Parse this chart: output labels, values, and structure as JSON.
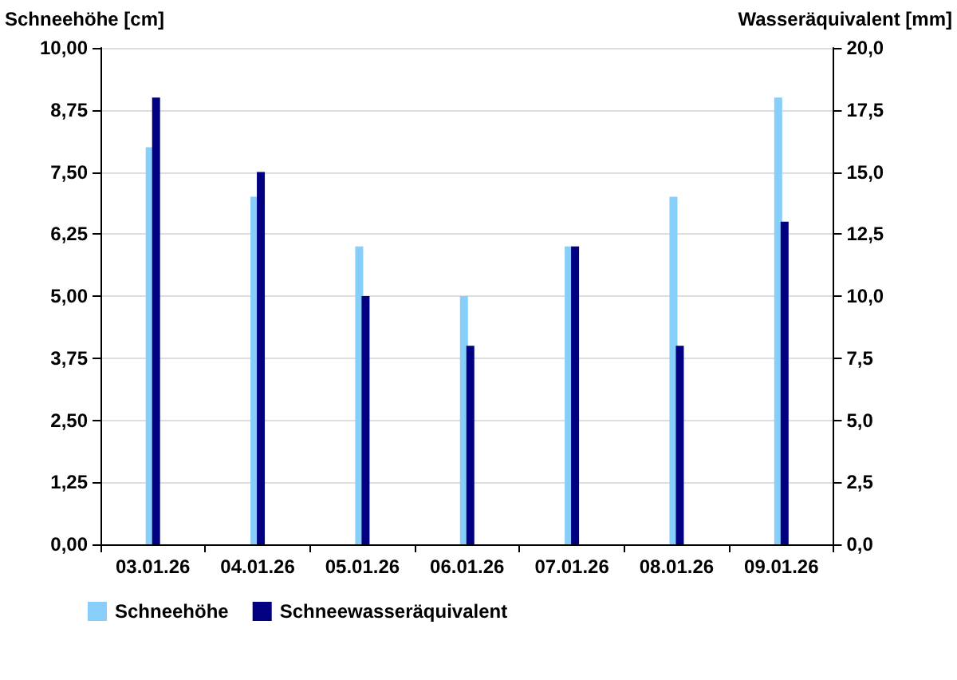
{
  "chart_data": {
    "type": "bar",
    "ylabel": "Schneehöhe [cm]",
    "y2label": "Wasseräquivalent [mm]",
    "categories": [
      "03.01.26",
      "04.01.26",
      "05.01.26",
      "06.01.26",
      "07.01.26",
      "08.01.26",
      "09.01.26"
    ],
    "series": [
      {
        "name": "Schneehöhe",
        "color": "#87cefa",
        "values": [
          8,
          7,
          6,
          5,
          6,
          7,
          9
        ]
      },
      {
        "name": "Schneewasseräquivalent",
        "color": "#000080",
        "axis": "y2",
        "values": [
          18,
          15,
          10,
          8,
          12,
          8,
          13
        ]
      }
    ],
    "ylim": [
      0,
      10
    ],
    "yticks": [
      {
        "value": 0,
        "label": "0,00"
      },
      {
        "value": 1.25,
        "label": "1,25"
      },
      {
        "value": 2.5,
        "label": "2,50"
      },
      {
        "value": 3.75,
        "label": "3,75"
      },
      {
        "value": 5,
        "label": "5,00"
      },
      {
        "value": 6.25,
        "label": "6,25"
      },
      {
        "value": 7.5,
        "label": "7,50"
      },
      {
        "value": 8.75,
        "label": "8,75"
      },
      {
        "value": 10,
        "label": "10,00"
      }
    ],
    "y2lim": [
      0,
      20
    ],
    "y2ticks": [
      {
        "value": 0,
        "label": "0,0"
      },
      {
        "value": 2.5,
        "label": "2,5"
      },
      {
        "value": 5,
        "label": "5,0"
      },
      {
        "value": 7.5,
        "label": "7,5"
      },
      {
        "value": 10,
        "label": "10,0"
      },
      {
        "value": 12.5,
        "label": "12,5"
      },
      {
        "value": 15,
        "label": "15,0"
      },
      {
        "value": 17.5,
        "label": "17,5"
      },
      {
        "value": 20,
        "label": "20,0"
      }
    ],
    "grid": "y",
    "legend": "bottom left"
  }
}
